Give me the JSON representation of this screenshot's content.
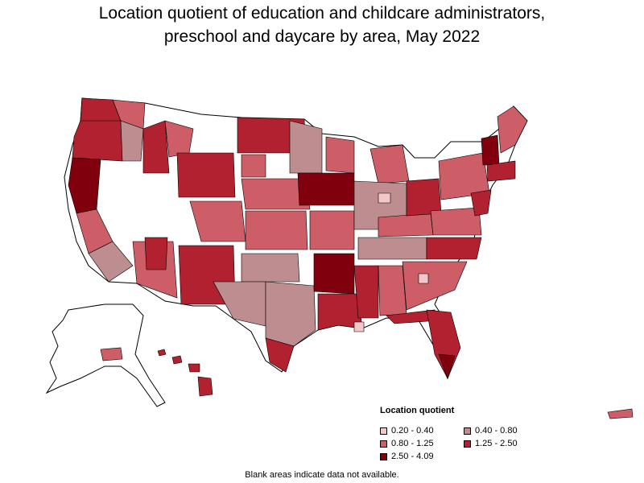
{
  "title_line1": "Location quotient of education and childcare administrators,",
  "title_line2": "preschool and daycare by area, May 2022",
  "legend": {
    "title": "Location quotient",
    "items": [
      {
        "label": "0.20 - 0.40",
        "color": "#f4c6c9"
      },
      {
        "label": "0.40 - 0.80",
        "color": "#bd8d8f"
      },
      {
        "label": "0.80 - 1.25",
        "color": "#cd5d67"
      },
      {
        "label": "1.25 - 2.50",
        "color": "#b2212f"
      },
      {
        "label": "2.50 - 4.09",
        "color": "#80000e"
      }
    ]
  },
  "footnote": "Blank areas indicate data not available.",
  "colors": {
    "blank": "#ffffff",
    "border": "#000000"
  }
}
